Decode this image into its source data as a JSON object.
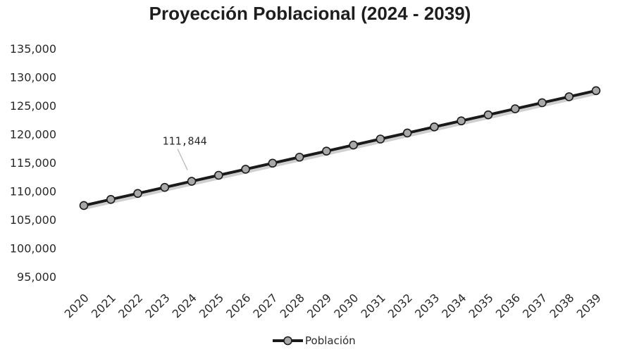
{
  "chart_data": {
    "type": "line",
    "title": "Proyección Poblacional (2024 - 2039)",
    "xlabel": "",
    "ylabel": "",
    "categories": [
      "2020",
      "2021",
      "2022",
      "2023",
      "2024",
      "2025",
      "2026",
      "2027",
      "2028",
      "2029",
      "2030",
      "2031",
      "2032",
      "2033",
      "2034",
      "2035",
      "2036",
      "2037",
      "2038",
      "2039"
    ],
    "series": [
      {
        "name": "Población",
        "values": [
          107600,
          108660,
          109720,
          110780,
          111844,
          112900,
          113960,
          115020,
          116080,
          117140,
          118200,
          119260,
          120320,
          121380,
          122440,
          123500,
          124560,
          125620,
          126680,
          127740
        ],
        "color": "#1a1a1a",
        "marker_fill": "#a8a8a8"
      }
    ],
    "ylim": [
      95000,
      135000
    ],
    "yticks": [
      "95,000",
      "100,000",
      "105,000",
      "110,000",
      "115,000",
      "120,000",
      "125,000",
      "130,000",
      "135,000"
    ],
    "annotations": [
      {
        "category": "2024",
        "text": "111,844"
      }
    ],
    "legend": {
      "placement": "bottom",
      "label": "Población"
    },
    "grid": false
  }
}
